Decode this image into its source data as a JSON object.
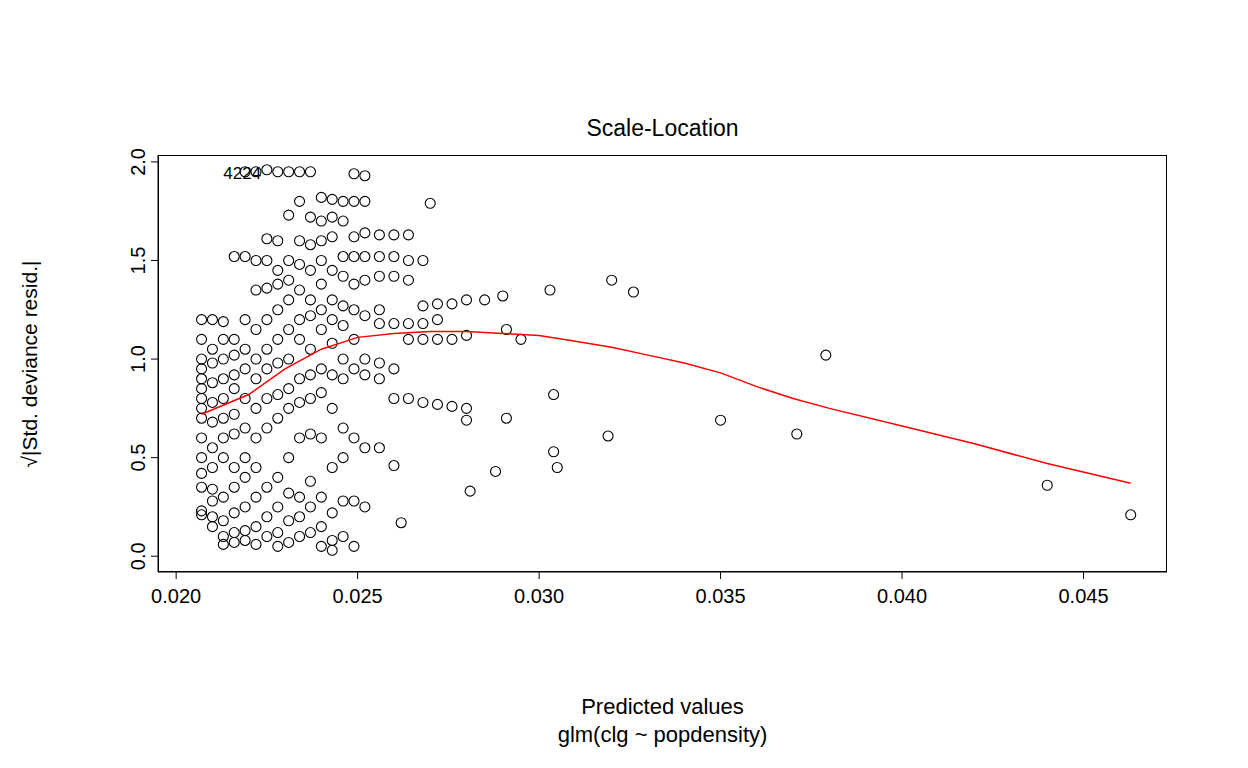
{
  "chart_data": {
    "type": "scatter",
    "title": "Scale-Location",
    "x_label": "Predicted values",
    "subtitle": "glm(clg ~ popdensity)",
    "y_label": "√|Std. deviance resid.|",
    "xlim": [
      0.0195,
      0.0473
    ],
    "ylim": [
      -0.08,
      2.035
    ],
    "xticks": [
      {
        "value": 0.02,
        "label": "0.020"
      },
      {
        "value": 0.025,
        "label": "0.025"
      },
      {
        "value": 0.03,
        "label": "0.030"
      },
      {
        "value": 0.035,
        "label": "0.035"
      },
      {
        "value": 0.04,
        "label": "0.040"
      },
      {
        "value": 0.045,
        "label": "0.045"
      }
    ],
    "yticks": [
      {
        "value": 0,
        "label": "0.0"
      },
      {
        "value": 0.5,
        "label": "0.5"
      },
      {
        "value": 1,
        "label": "1.0"
      },
      {
        "value": 1.5,
        "label": "1.5"
      },
      {
        "value": 2,
        "label": "2.0"
      }
    ],
    "grid": false,
    "annotations": [
      {
        "text": "4224",
        "x": 0.0213,
        "y": 1.95
      }
    ],
    "series": [
      {
        "type": "scatter",
        "color": "#000000",
        "marker": "circle",
        "x": [
          0.0207,
          0.0207,
          0.0207,
          0.0207,
          0.0207,
          0.0207,
          0.0207,
          0.0207,
          0.0207,
          0.0207,
          0.0207,
          0.0207,
          0.0207,
          0.0207,
          0.0207,
          0.021,
          0.021,
          0.021,
          0.021,
          0.021,
          0.021,
          0.021,
          0.021,
          0.021,
          0.021,
          0.021,
          0.021,
          0.0213,
          0.0213,
          0.0213,
          0.0213,
          0.0213,
          0.0213,
          0.0213,
          0.0213,
          0.0213,
          0.0213,
          0.0213,
          0.0213,
          0.0216,
          0.0216,
          0.0216,
          0.0216,
          0.0216,
          0.0216,
          0.0216,
          0.0216,
          0.0216,
          0.0216,
          0.0216,
          0.0216,
          0.0219,
          0.0219,
          0.0219,
          0.0219,
          0.0219,
          0.0219,
          0.0219,
          0.0219,
          0.0219,
          0.0219,
          0.0219,
          0.0219,
          0.0222,
          0.0222,
          0.0222,
          0.0222,
          0.0222,
          0.0222,
          0.0222,
          0.0222,
          0.0222,
          0.0222,
          0.0222,
          0.0222,
          0.0225,
          0.0225,
          0.0225,
          0.0225,
          0.0225,
          0.0225,
          0.0225,
          0.0225,
          0.0225,
          0.0225,
          0.0225,
          0.0225,
          0.0228,
          0.0228,
          0.0228,
          0.0228,
          0.0228,
          0.0228,
          0.0228,
          0.0228,
          0.0228,
          0.0228,
          0.0228,
          0.0228,
          0.0228,
          0.0231,
          0.0231,
          0.0231,
          0.0231,
          0.0231,
          0.0231,
          0.0231,
          0.0231,
          0.0231,
          0.0231,
          0.0231,
          0.0231,
          0.0231,
          0.0234,
          0.0234,
          0.0234,
          0.0234,
          0.0234,
          0.0234,
          0.0234,
          0.0234,
          0.0234,
          0.0234,
          0.0234,
          0.0234,
          0.0234,
          0.0237,
          0.0237,
          0.0237,
          0.0237,
          0.0237,
          0.0237,
          0.0237,
          0.0237,
          0.0237,
          0.0237,
          0.0237,
          0.0237,
          0.0237,
          0.024,
          0.024,
          0.024,
          0.024,
          0.024,
          0.024,
          0.024,
          0.024,
          0.024,
          0.024,
          0.024,
          0.024,
          0.024,
          0.0243,
          0.0243,
          0.0243,
          0.0243,
          0.0243,
          0.0243,
          0.0243,
          0.0243,
          0.0243,
          0.0243,
          0.0243,
          0.0243,
          0.0243,
          0.0246,
          0.0246,
          0.0246,
          0.0246,
          0.0246,
          0.0246,
          0.0246,
          0.0246,
          0.0246,
          0.0246,
          0.0246,
          0.0246,
          0.0249,
          0.0249,
          0.0249,
          0.0249,
          0.0249,
          0.0249,
          0.0249,
          0.0249,
          0.0249,
          0.0249,
          0.0249,
          0.0252,
          0.0252,
          0.0252,
          0.0252,
          0.0252,
          0.0252,
          0.0252,
          0.0252,
          0.0252,
          0.0252,
          0.0256,
          0.0256,
          0.0256,
          0.0256,
          0.0256,
          0.0256,
          0.0256,
          0.0256,
          0.026,
          0.026,
          0.026,
          0.026,
          0.026,
          0.026,
          0.0264,
          0.0264,
          0.0264,
          0.0264,
          0.0264,
          0.0264,
          0.0268,
          0.0268,
          0.0268,
          0.0268,
          0.0268,
          0.0272,
          0.0272,
          0.0272,
          0.0272,
          0.0276,
          0.0276,
          0.0276,
          0.028,
          0.028,
          0.028,
          0.028,
          0.0303,
          0.032,
          0.0326,
          0.0379,
          0.035,
          0.0371,
          0.0319,
          0.0304,
          0.0304,
          0.0305,
          0.0288,
          0.0281,
          0.0262,
          0.044,
          0.0463,
          0.0295,
          0.0291,
          0.0291,
          0.029,
          0.0285,
          0.027,
          0.026
        ],
        "values": [
          1.2,
          1.1,
          1.0,
          0.95,
          0.9,
          0.85,
          0.8,
          0.75,
          0.7,
          0.6,
          0.5,
          0.42,
          0.35,
          0.23,
          0.21,
          1.2,
          1.05,
          0.98,
          0.88,
          0.78,
          0.68,
          0.55,
          0.45,
          0.34,
          0.28,
          0.2,
          0.15,
          1.19,
          1.1,
          1.0,
          0.9,
          0.8,
          0.7,
          0.6,
          0.5,
          0.3,
          0.18,
          0.1,
          0.06,
          1.52,
          1.1,
          1.02,
          0.92,
          0.85,
          0.72,
          0.62,
          0.45,
          0.35,
          0.22,
          0.12,
          0.07,
          1.95,
          1.52,
          1.2,
          1.05,
          0.95,
          0.8,
          0.65,
          0.5,
          0.4,
          0.25,
          0.13,
          0.08,
          1.95,
          1.5,
          1.35,
          1.15,
          1.0,
          0.9,
          0.75,
          0.6,
          0.45,
          0.3,
          0.15,
          0.06,
          1.96,
          1.61,
          1.5,
          1.36,
          1.2,
          1.05,
          0.95,
          0.8,
          0.65,
          0.35,
          0.2,
          0.1,
          1.95,
          1.6,
          1.45,
          1.38,
          1.25,
          1.1,
          0.98,
          0.82,
          0.7,
          0.4,
          0.25,
          0.12,
          0.05,
          1.95,
          1.73,
          1.5,
          1.4,
          1.3,
          1.15,
          1.0,
          0.85,
          0.75,
          0.5,
          0.32,
          0.18,
          0.07,
          1.95,
          1.8,
          1.6,
          1.48,
          1.35,
          1.2,
          1.1,
          0.9,
          0.78,
          0.6,
          0.3,
          0.2,
          0.1,
          1.95,
          1.72,
          1.58,
          1.45,
          1.3,
          1.22,
          1.05,
          0.92,
          0.8,
          0.62,
          0.38,
          0.25,
          0.12,
          1.82,
          1.7,
          1.6,
          1.5,
          1.38,
          1.25,
          1.15,
          0.95,
          0.83,
          0.6,
          0.3,
          0.15,
          0.05,
          1.81,
          1.72,
          1.62,
          1.45,
          1.3,
          1.2,
          1.08,
          0.92,
          0.75,
          0.45,
          0.22,
          0.08,
          0.03,
          1.8,
          1.7,
          1.52,
          1.42,
          1.27,
          1.17,
          1.0,
          0.9,
          0.65,
          0.5,
          0.28,
          0.1,
          1.94,
          1.8,
          1.62,
          1.52,
          1.38,
          1.25,
          1.1,
          0.95,
          0.6,
          0.28,
          0.05,
          1.93,
          1.8,
          1.64,
          1.52,
          1.4,
          1.22,
          1.0,
          0.92,
          0.55,
          0.25,
          1.63,
          1.52,
          1.42,
          1.25,
          1.18,
          0.98,
          0.9,
          0.55,
          1.63,
          1.52,
          1.42,
          1.18,
          0.8,
          0.95,
          1.63,
          1.5,
          1.4,
          1.18,
          0.8,
          1.1,
          1.5,
          1.27,
          1.18,
          0.78,
          1.1,
          1.28,
          1.2,
          1.1,
          0.77,
          1.28,
          1.1,
          0.76,
          1.3,
          0.75,
          1.12,
          0.69,
          1.35,
          1.4,
          1.34,
          1.02,
          0.69,
          0.62,
          0.61,
          0.82,
          0.53,
          0.45,
          0.43,
          0.33,
          0.17,
          0.36,
          0.21,
          1.1,
          1.15,
          0.7,
          1.32,
          1.3,
          1.79,
          0.46
        ]
      },
      {
        "type": "line",
        "color": "#ff0000",
        "x": [
          0.0207,
          0.022,
          0.023,
          0.024,
          0.025,
          0.026,
          0.027,
          0.028,
          0.029,
          0.03,
          0.031,
          0.032,
          0.033,
          0.034,
          0.035,
          0.036,
          0.037,
          0.038,
          0.04,
          0.042,
          0.044,
          0.0463
        ],
        "values": [
          0.72,
          0.82,
          0.95,
          1.05,
          1.11,
          1.13,
          1.14,
          1.14,
          1.13,
          1.12,
          1.09,
          1.06,
          1.02,
          0.98,
          0.93,
          0.86,
          0.8,
          0.75,
          0.66,
          0.57,
          0.47,
          0.37
        ]
      }
    ]
  }
}
